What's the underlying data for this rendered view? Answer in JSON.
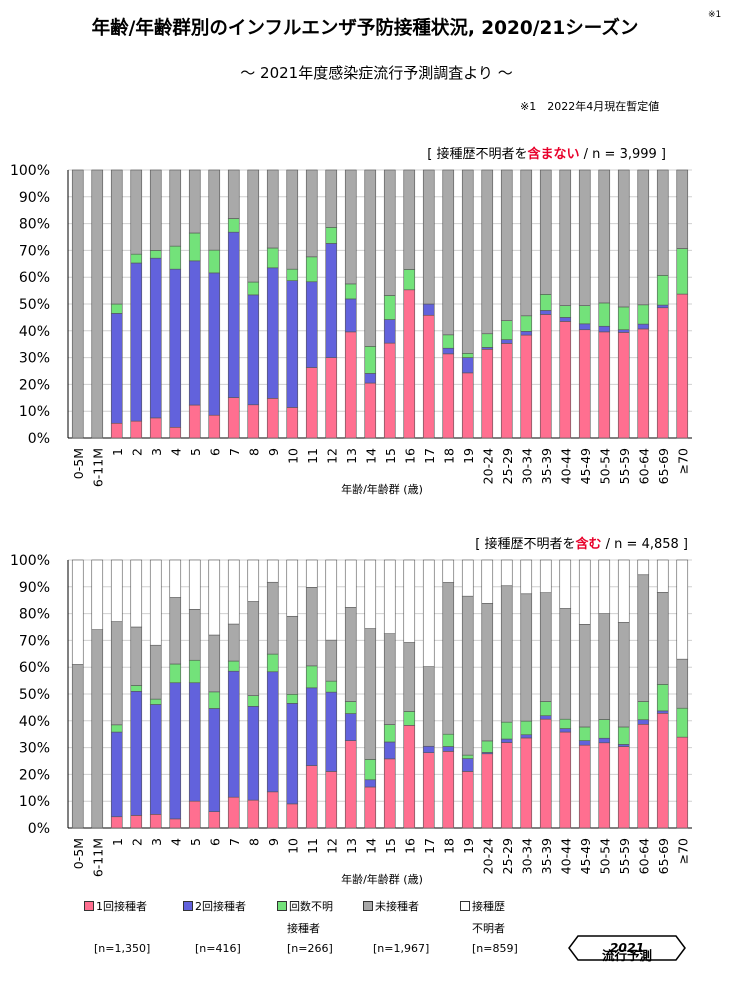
{
  "title": "年齢/年齢群別のインフルエンザ予防接種状況, 2020/21シーズン",
  "title_note": "※1",
  "subtitle": "～ 2021年度感染症流行予測調査より ～",
  "note": "※1　2022年4月現在暫定値",
  "colors": {
    "dose1": "#ff6f90",
    "dose2": "#6262dc",
    "unknown_doses": "#73e27a",
    "unvaccinated": "#a9a9a9",
    "history_unknown": "#ffffff",
    "highlight": "#e8002a"
  },
  "legend": {
    "items": [
      {
        "label": "1回接種者",
        "label2": "",
        "count": "[n=1,350]"
      },
      {
        "label": "2回接種者",
        "label2": "",
        "count": "[n=416]"
      },
      {
        "label": "回数不明",
        "label2": "接種者",
        "count": "[n=266]"
      },
      {
        "label": "未接種者",
        "label2": "",
        "count": "[n=1,967]"
      },
      {
        "label": "接種歴",
        "label2": "不明者",
        "count": "[n=859]"
      }
    ]
  },
  "badge": {
    "text": "流行予測",
    "year": "2021"
  },
  "chart_data": [
    {
      "type": "stacked-bar",
      "header_pre": "[ 接種歴不明者を",
      "header_em": "含まない",
      "header_post": " / n = 3,999 ]",
      "xlabel": "年齢/年齢群 (歳)",
      "ylim": [
        0,
        100
      ],
      "yticks": [
        "0%",
        "10%",
        "20%",
        "30%",
        "40%",
        "50%",
        "60%",
        "70%",
        "80%",
        "90%",
        "100%"
      ],
      "categories": [
        "0-5M",
        "6-11M",
        "1",
        "2",
        "3",
        "4",
        "5",
        "6",
        "7",
        "8",
        "9",
        "10",
        "11",
        "12",
        "13",
        "14",
        "15",
        "16",
        "17",
        "18",
        "19",
        "20-24",
        "25-29",
        "30-34",
        "35-39",
        "40-44",
        "45-49",
        "50-54",
        "55-59",
        "60-64",
        "65-69",
        "≥70"
      ],
      "series": [
        {
          "name": "1回接種者",
          "values": [
            0,
            0,
            5.5,
            6.3,
            7.5,
            4,
            12.3,
            8.5,
            15.1,
            12.4,
            14.8,
            11.4,
            26.3,
            30,
            39.6,
            20.5,
            35.4,
            55.3,
            45.8,
            31.4,
            24.3,
            33.1,
            35.3,
            38.4,
            46.1,
            43.5,
            40.4,
            39.6,
            39.4,
            40.7,
            48.6,
            53.7
          ]
        },
        {
          "name": "2回接種者",
          "values": [
            0,
            0,
            41,
            59,
            59.6,
            59,
            53.8,
            53.1,
            61.7,
            41,
            48.7,
            47.3,
            32,
            42.6,
            12.3,
            3.6,
            8.8,
            0,
            4.2,
            2.1,
            5.7,
            0.7,
            1.4,
            1.4,
            1.5,
            1.5,
            2.2,
            2.1,
            1,
            1.8,
            1,
            0
          ]
        },
        {
          "name": "回数不明接種者",
          "values": [
            0,
            0,
            3.5,
            3.3,
            2.9,
            8.6,
            10.4,
            8.5,
            5.1,
            4.8,
            7.4,
            4.3,
            9.3,
            6,
            5.6,
            10.1,
            9,
            7.6,
            0,
            5,
            1.6,
            5.1,
            7.1,
            5.8,
            6,
            4.4,
            6.8,
            8.7,
            8.5,
            7.2,
            11.1,
            17
          ]
        },
        {
          "name": "未接種者",
          "values": [
            100,
            100,
            50,
            31.4,
            30,
            28.4,
            23.5,
            29.9,
            18.1,
            41.8,
            29.1,
            37,
            32.4,
            21.4,
            42.5,
            65.8,
            46.8,
            37.1,
            50,
            61.5,
            68.4,
            61.1,
            56.2,
            54.4,
            46.4,
            50.6,
            50.6,
            49.6,
            51.1,
            50.3,
            39.3,
            29.3
          ]
        }
      ]
    },
    {
      "type": "stacked-bar",
      "header_pre": "[ 接種歴不明者を",
      "header_em": "含む",
      "header_post": " / n = 4,858 ]",
      "xlabel": "年齢/年齢群 (歳)",
      "ylim": [
        0,
        100
      ],
      "yticks": [
        "0%",
        "10%",
        "20%",
        "30%",
        "40%",
        "50%",
        "60%",
        "70%",
        "80%",
        "90%",
        "100%"
      ],
      "categories": [
        "0-5M",
        "6-11M",
        "1",
        "2",
        "3",
        "4",
        "5",
        "6",
        "7",
        "8",
        "9",
        "10",
        "11",
        "12",
        "13",
        "14",
        "15",
        "16",
        "17",
        "18",
        "19",
        "20-24",
        "25-29",
        "30-34",
        "35-39",
        "40-44",
        "45-49",
        "50-54",
        "55-59",
        "60-64",
        "65-69",
        "≥70"
      ],
      "series": [
        {
          "name": "1回接種者",
          "values": [
            0,
            0,
            4.2,
            4.7,
            5.1,
            3.4,
            10,
            6.1,
            11.5,
            10.4,
            13.5,
            9,
            23.3,
            21.1,
            32.6,
            15.3,
            25.8,
            38.3,
            28.1,
            28.6,
            21.1,
            27.7,
            31.9,
            33.6,
            40.6,
            35.8,
            30.9,
            31.8,
            30.4,
            38.7,
            42.8,
            33.9
          ]
        },
        {
          "name": "2回接種者",
          "values": [
            0,
            0,
            31.6,
            46.3,
            41,
            50.8,
            44.2,
            38.5,
            47,
            35,
            44.8,
            37.5,
            29,
            29.6,
            10.1,
            2.7,
            6.3,
            0,
            2.4,
            1.8,
            4.8,
            0.5,
            1.3,
            1.2,
            1.3,
            1.3,
            1.7,
            1.7,
            0.8,
            1.7,
            0.9,
            0
          ]
        },
        {
          "name": "回数不明接種者",
          "values": [
            0,
            0,
            2.7,
            2.2,
            2,
            7,
            8.4,
            6.2,
            3.8,
            4,
            6.6,
            3.4,
            8.2,
            4.1,
            4.5,
            7.6,
            6.5,
            5.2,
            0,
            4.6,
            1.3,
            4.3,
            6.3,
            5.1,
            5.3,
            3.5,
            5.1,
            7,
            6.5,
            6.8,
            9.9,
            10.8
          ]
        },
        {
          "name": "未接種者",
          "values": [
            61,
            74,
            38.5,
            21.8,
            20.1,
            24.8,
            19,
            21.2,
            13.8,
            35.1,
            26.8,
            29.1,
            29.3,
            15.3,
            35.1,
            48.8,
            33.9,
            25.7,
            29.7,
            56.6,
            59.3,
            51.3,
            50.9,
            47.5,
            40.6,
            41.3,
            38.3,
            39.5,
            39,
            47.3,
            34.3,
            18.3
          ]
        },
        {
          "name": "接種歴不明者",
          "values": [
            39,
            26,
            23,
            25,
            31.8,
            14,
            18.4,
            28,
            23.9,
            15.5,
            8.3,
            21,
            10.2,
            29.9,
            17.7,
            25.6,
            27.5,
            30.8,
            39.8,
            8.4,
            13.5,
            16.2,
            9.6,
            12.6,
            12.2,
            18.1,
            24,
            20,
            23.3,
            5.5,
            12.1,
            37
          ]
        }
      ]
    }
  ]
}
